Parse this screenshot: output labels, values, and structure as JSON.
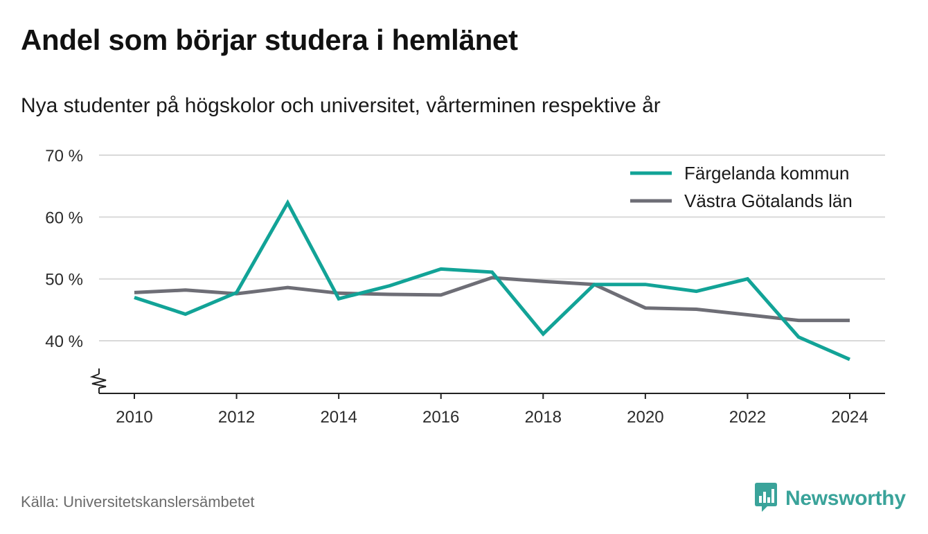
{
  "title": "Andel som börjar studera i hemlänet",
  "subtitle": "Nya studenter på högskolor och universitet, vårterminen respektive år",
  "source": "Källa: Universitetskanslersämbetet",
  "brand": {
    "name": "Newsworthy",
    "icon": "newsworthy-logo-icon",
    "color": "#3aa39a"
  },
  "chart_data": {
    "type": "line",
    "x": [
      2010,
      2011,
      2012,
      2013,
      2014,
      2015,
      2016,
      2017,
      2018,
      2019,
      2020,
      2021,
      2022,
      2023,
      2024
    ],
    "x_ticks": [
      2010,
      2012,
      2014,
      2016,
      2018,
      2020,
      2022,
      2024
    ],
    "x_tick_labels": [
      "2010",
      "2012",
      "2014",
      "2016",
      "2018",
      "2020",
      "2022",
      "2024"
    ],
    "y_ticks": [
      40,
      50,
      60,
      70
    ],
    "y_tick_labels": [
      "40 %",
      "50 %",
      "60 %",
      "70 %"
    ],
    "ylim": [
      31.5,
      70
    ],
    "y_axis_break": true,
    "grid": true,
    "legend_position": "top-right",
    "series": [
      {
        "name": "Färgelanda kommun",
        "color": "#12a397",
        "values": [
          47.0,
          44.3,
          47.8,
          62.3,
          46.8,
          48.9,
          51.6,
          51.1,
          41.1,
          49.1,
          49.1,
          48.0,
          50.0,
          40.6,
          37.0
        ]
      },
      {
        "name": "Västra Götalands län",
        "color": "#6e6e76",
        "values": [
          47.8,
          48.2,
          47.6,
          48.6,
          47.7,
          47.5,
          47.4,
          50.2,
          49.6,
          49.1,
          45.3,
          45.1,
          44.2,
          43.3,
          43.3
        ]
      }
    ]
  }
}
